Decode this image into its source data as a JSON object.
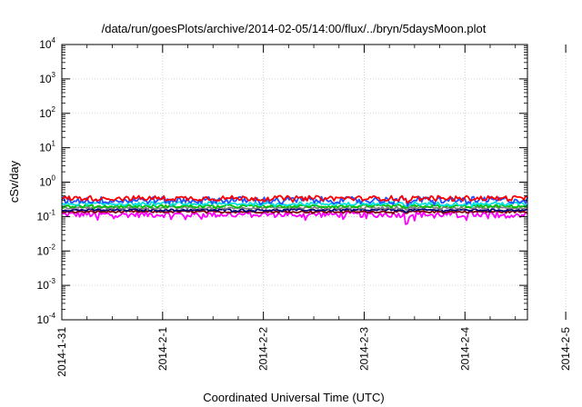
{
  "chart_data": {
    "type": "line",
    "title": "/data/run/goesPlots/archive/2014-02-05/14:00/flux/../bryn/5daysMoon.plot",
    "xlabel": "Coordinated Universal Time (UTC)",
    "ylabel": "cSv/day",
    "y_scale": "log",
    "ylim": [
      0.0001,
      10000
    ],
    "y_ticks": [
      {
        "base": "10",
        "exp": "-4",
        "value": 0.0001
      },
      {
        "base": "10",
        "exp": "-3",
        "value": 0.001
      },
      {
        "base": "10",
        "exp": "-2",
        "value": 0.01
      },
      {
        "base": "10",
        "exp": "-1",
        "value": 0.1
      },
      {
        "base": "10",
        "exp": "0",
        "value": 1
      },
      {
        "base": "10",
        "exp": "1",
        "value": 10
      },
      {
        "base": "10",
        "exp": "2",
        "value": 100
      },
      {
        "base": "10",
        "exp": "3",
        "value": 1000
      },
      {
        "base": "10",
        "exp": "4",
        "value": 10000
      }
    ],
    "x_ticks": [
      "2014-1-31",
      "2014-2-1",
      "2014-2-2",
      "2014-2-3",
      "2014-2-4",
      "2014-2-5"
    ],
    "xlim": [
      0,
      4.62
    ],
    "grid": true,
    "legend": "none",
    "series": [
      {
        "color": "#ff00ff",
        "base": 0.115,
        "amp": 0.35,
        "dip_depth": 0.9,
        "dips": [
          [
            0.35,
            0.5
          ],
          [
            1.22,
            0.4
          ],
          [
            2.3,
            0.35
          ],
          [
            3.42,
            1.0
          ],
          [
            3.93,
            0.3
          ],
          [
            4.15,
            0.4
          ]
        ]
      },
      {
        "color": "#800000",
        "base": 0.138,
        "amp": 0.12,
        "dip_depth": 0.2,
        "dips": [
          [
            3.42,
            0.8
          ]
        ]
      },
      {
        "color": "#000080",
        "base": 0.155,
        "amp": 0.12,
        "dip_depth": 0.2,
        "dips": [
          [
            3.42,
            0.8
          ]
        ]
      },
      {
        "color": "#808080",
        "base": 0.18,
        "amp": 0.15,
        "dip_depth": 0.2,
        "dips": [
          [
            3.42,
            0.8
          ]
        ]
      },
      {
        "color": "#00c000",
        "base": 0.2,
        "amp": 0.18,
        "dip_depth": 0.2,
        "dips": [
          [
            3.42,
            0.8
          ]
        ]
      },
      {
        "color": "#00e0e0",
        "base": 0.235,
        "amp": 0.22,
        "dip_depth": 0.3,
        "dips": [
          [
            3.42,
            0.8
          ]
        ]
      },
      {
        "color": "#2050ff",
        "base": 0.3,
        "amp": 0.4,
        "dip_depth": 0.4,
        "dips": [
          [
            0.36,
            0.4
          ],
          [
            1.05,
            0.4
          ],
          [
            2.18,
            0.4
          ],
          [
            3.43,
            1.0
          ],
          [
            4.03,
            0.5
          ]
        ]
      },
      {
        "color": "#ff0000",
        "base": 0.34,
        "amp": 0.3,
        "dip_depth": 0.3,
        "dips": [
          [
            3.43,
            0.8
          ]
        ]
      }
    ]
  }
}
